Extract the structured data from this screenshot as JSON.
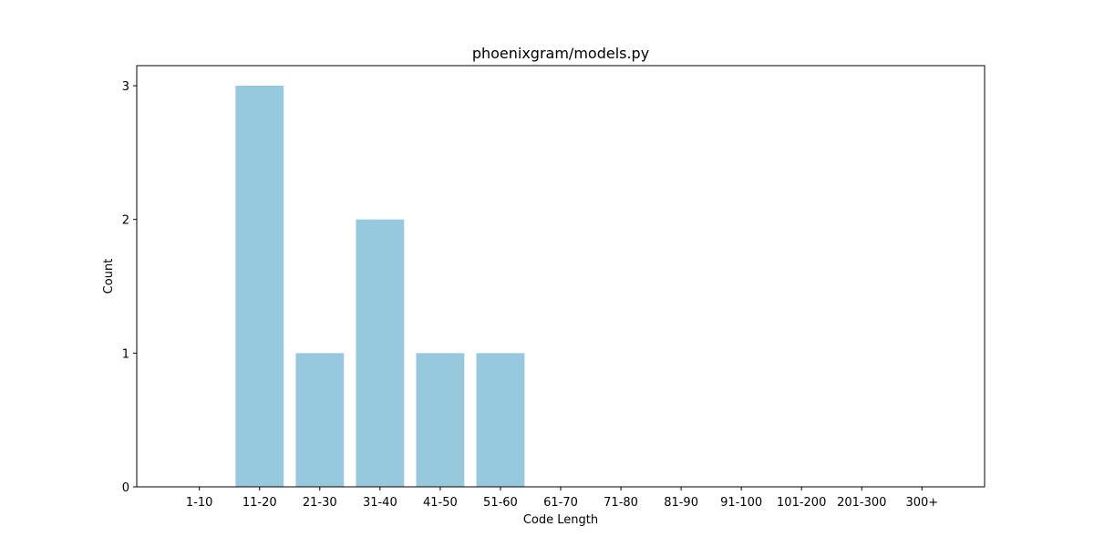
{
  "chart_data": {
    "type": "bar",
    "title": "phoenixgram/models.py",
    "xlabel": "Code Length",
    "ylabel": "Count",
    "categories": [
      "1-10",
      "11-20",
      "21-30",
      "31-40",
      "41-50",
      "51-60",
      "61-70",
      "71-80",
      "81-90",
      "91-100",
      "101-200",
      "201-300",
      "300+"
    ],
    "values": [
      0,
      3,
      1,
      2,
      1,
      1,
      0,
      0,
      0,
      0,
      0,
      0,
      0
    ],
    "ylim": [
      0,
      3.15
    ],
    "yticks": [
      0,
      1,
      2,
      3
    ],
    "bar_color": "#96c9dd",
    "grid": false,
    "legend": "none"
  }
}
